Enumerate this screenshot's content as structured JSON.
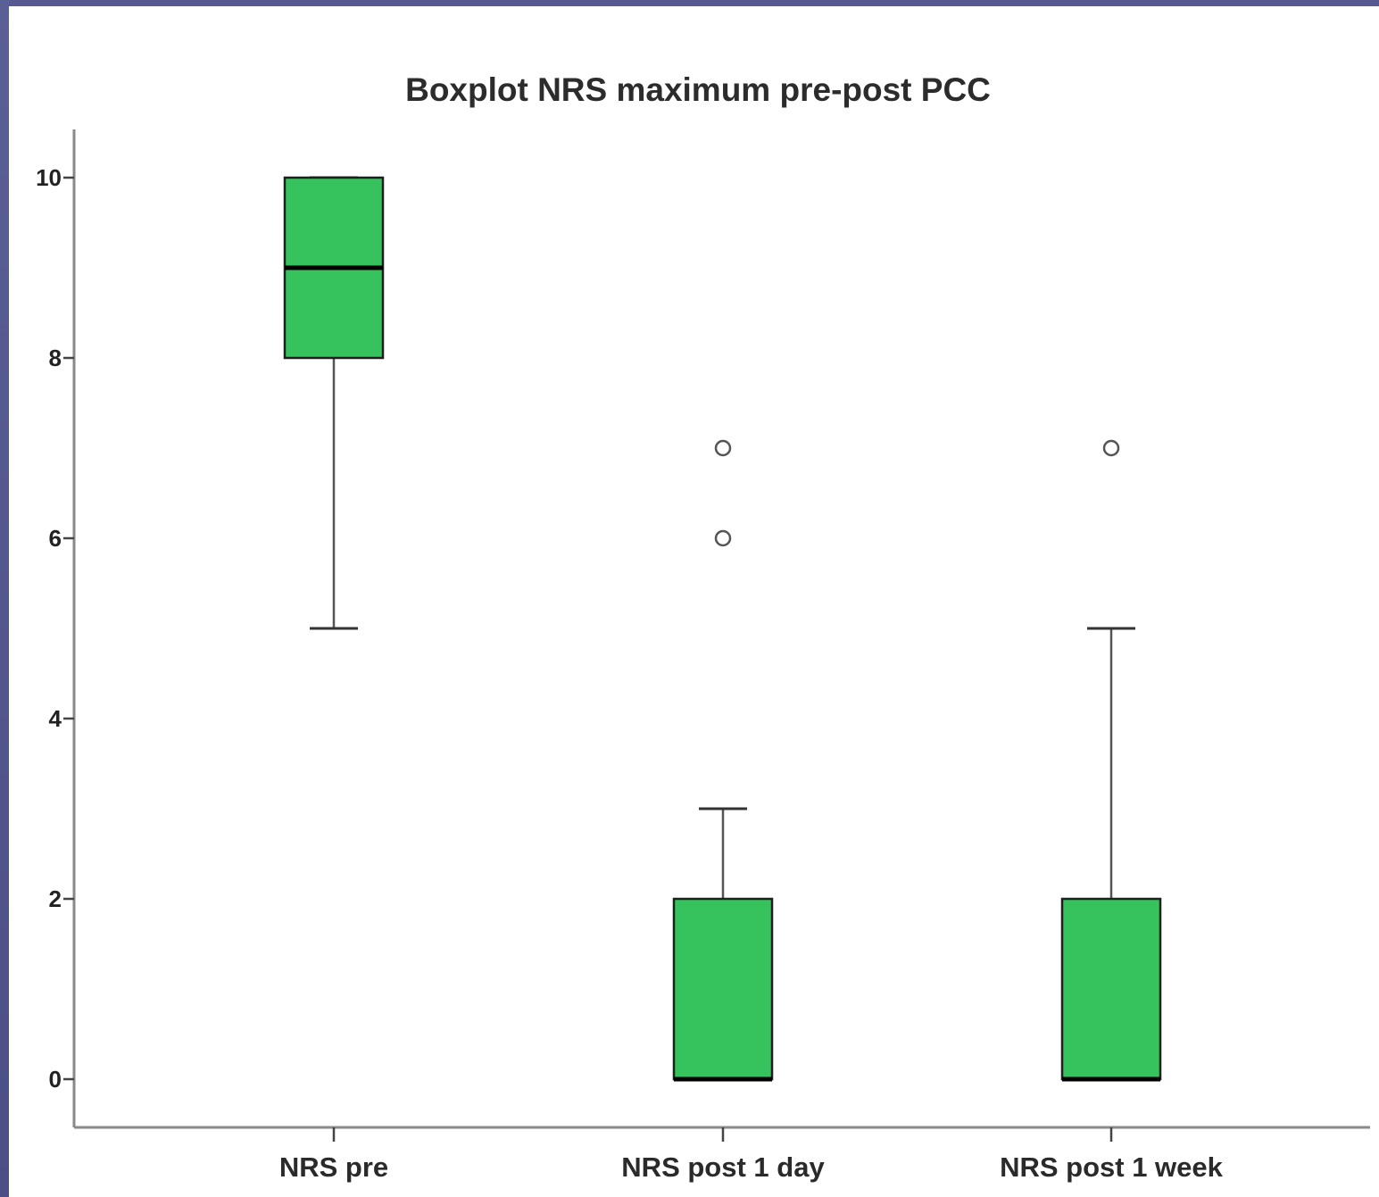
{
  "colors": {
    "box_fill": "#36c25d",
    "box_stroke": "#1f1f1f",
    "median": "#000000",
    "whisker": "#555555",
    "axis": "#8a8a8a",
    "frame": "#565a90"
  },
  "chart_data": {
    "type": "boxplot",
    "title": "Boxplot NRS maximum pre-post PCC",
    "xlabel": "",
    "ylabel": "",
    "categories": [
      "NRS pre",
      "NRS post 1 day",
      "NRS post 1 week"
    ],
    "ylim": [
      -0.5,
      10.5
    ],
    "yticks": [
      0,
      2,
      4,
      6,
      8,
      10
    ],
    "grid": false,
    "boxes": [
      {
        "category": "NRS pre",
        "whisker_low": 5,
        "q1": 8,
        "median": 9,
        "q3": 10,
        "whisker_high": 10,
        "outliers": []
      },
      {
        "category": "NRS post 1 day",
        "whisker_low": 0,
        "q1": 0,
        "median": 0,
        "q3": 2,
        "whisker_high": 3,
        "outliers": [
          6,
          7
        ]
      },
      {
        "category": "NRS post 1 week",
        "whisker_low": 0,
        "q1": 0,
        "median": 0,
        "q3": 2,
        "whisker_high": 5,
        "outliers": [
          7
        ]
      }
    ]
  }
}
